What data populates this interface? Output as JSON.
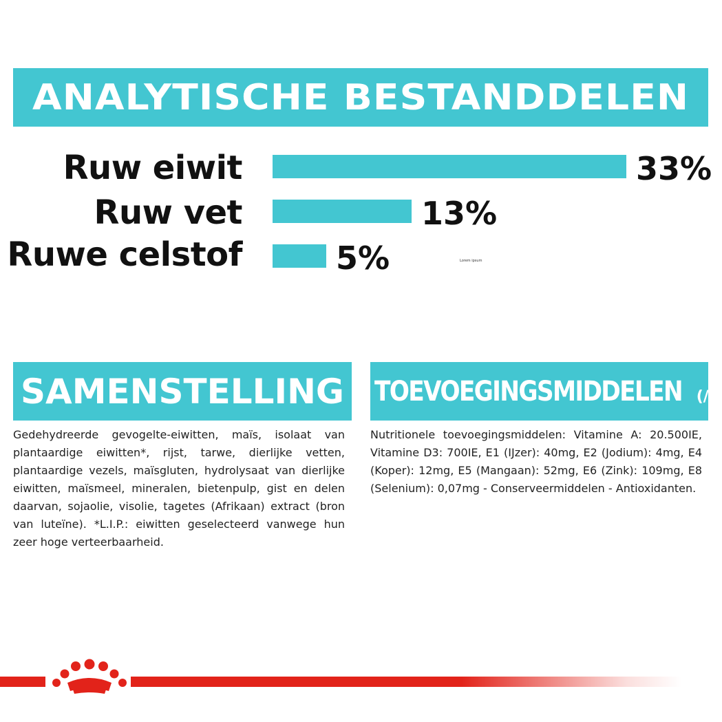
{
  "header": {
    "title": "ANALYTISCHE BESTANDDELEN"
  },
  "nutrients": [
    {
      "label": "Ruw eiwit",
      "value_text": "33%",
      "value": 33
    },
    {
      "label": "Ruw vet",
      "value_text": "13%",
      "value": 13
    },
    {
      "label": "Ruwe celstof",
      "value_text": "5%",
      "value": 5
    }
  ],
  "placeholder_text": "Lorem ipsum",
  "composition": {
    "title": "SAMENSTELLING",
    "text": "Gedehydreerde gevogelte-eiwitten, maïs, isolaat van plantaardige eiwitten*, rijst, tarwe, dierlijke vetten, plantaardige vezels, maïsgluten, hydrolysaat van dierlijke eiwitten, maïsmeel, mineralen, bietenpulp, gist en delen daarvan, sojaolie, visolie, tagetes (Afrikaan) extract (bron van luteïne). *L.I.P.: eiwitten geselecteerd vanwege hun zeer hoge verteerbaarheid."
  },
  "additives": {
    "title": "TOEVOEGINGSMIDDELEN",
    "title_suffix": "(/kg)",
    "text": "Nutritionele toevoegingsmiddelen: Vitamine A: 20.500IE, Vitamine D3: 700IE, E1 (IJzer): 40mg, E2 (Jodium): 4mg, E4 (Koper): 12mg, E5 (Mangaan): 52mg, E6 (Zink): 109mg, E8 (Selenium): 0,07mg - Conserveermiddelen - Antioxidanten."
  },
  "colors": {
    "accent": "#43c6d1",
    "brand_red": "#e2231a",
    "text": "#111111"
  },
  "footer": {
    "logo_icon": "royal-canin-crown-icon"
  }
}
